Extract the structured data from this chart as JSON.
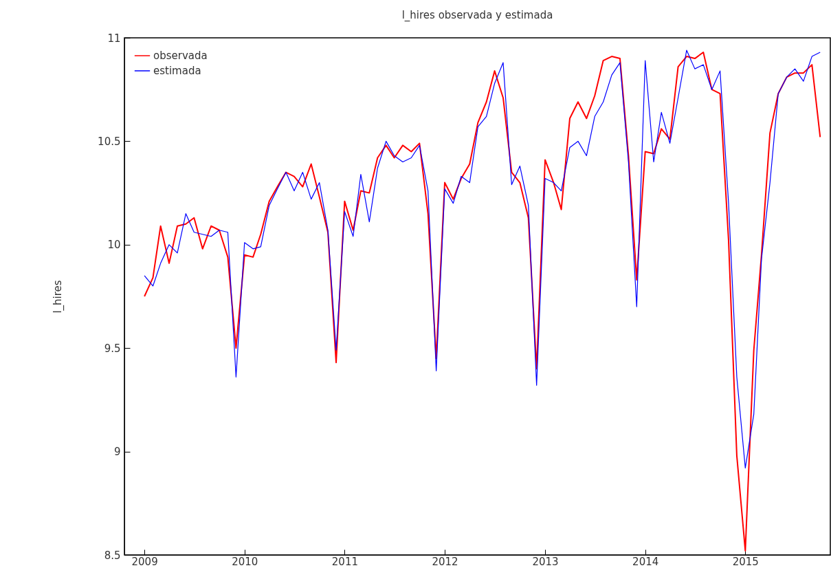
{
  "chart_data": {
    "type": "line",
    "title": "l_hires observada y estimada",
    "ylabel": "l_hires",
    "x": [
      "2009-01",
      "2009-02",
      "2009-03",
      "2009-04",
      "2009-05",
      "2009-06",
      "2009-07",
      "2009-08",
      "2009-09",
      "2009-10",
      "2009-11",
      "2009-12",
      "2010-01",
      "2010-02",
      "2010-03",
      "2010-04",
      "2010-05",
      "2010-06",
      "2010-07",
      "2010-08",
      "2010-09",
      "2010-10",
      "2010-11",
      "2010-12",
      "2011-01",
      "2011-02",
      "2011-03",
      "2011-04",
      "2011-05",
      "2011-06",
      "2011-07",
      "2011-08",
      "2011-09",
      "2011-10",
      "2011-11",
      "2011-12",
      "2012-01",
      "2012-02",
      "2012-03",
      "2012-04",
      "2012-05",
      "2012-06",
      "2012-07",
      "2012-08",
      "2012-09",
      "2012-10",
      "2012-11",
      "2012-12",
      "2013-01",
      "2013-02",
      "2013-03",
      "2013-04",
      "2013-05",
      "2013-06",
      "2013-07",
      "2013-08",
      "2013-09",
      "2013-10",
      "2013-11",
      "2013-12",
      "2014-01",
      "2014-02",
      "2014-03",
      "2014-04",
      "2014-05",
      "2014-06",
      "2014-07",
      "2014-08",
      "2014-09",
      "2014-10",
      "2014-11",
      "2014-12",
      "2015-01",
      "2015-02",
      "2015-03",
      "2015-04",
      "2015-05",
      "2015-06",
      "2015-07",
      "2015-08",
      "2015-09",
      "2015-10"
    ],
    "series": [
      {
        "name": "observada",
        "color": "#ff0000",
        "values": [
          9.75,
          9.84,
          10.09,
          9.91,
          10.09,
          10.1,
          10.13,
          9.98,
          10.09,
          10.07,
          9.94,
          9.5,
          9.95,
          9.94,
          10.05,
          10.21,
          10.28,
          10.35,
          10.33,
          10.28,
          10.39,
          10.23,
          10.06,
          9.43,
          10.21,
          10.07,
          10.26,
          10.25,
          10.42,
          10.48,
          10.42,
          10.48,
          10.45,
          10.49,
          10.15,
          9.45,
          10.3,
          10.22,
          10.32,
          10.39,
          10.59,
          10.69,
          10.84,
          10.71,
          10.35,
          10.3,
          10.13,
          9.4,
          10.41,
          10.3,
          10.17,
          10.61,
          10.69,
          10.61,
          10.72,
          10.89,
          10.91,
          10.9,
          10.43,
          9.83,
          10.45,
          10.44,
          10.56,
          10.51,
          10.86,
          10.91,
          10.9,
          10.93,
          10.75,
          10.73,
          10.02,
          8.98,
          8.52,
          9.49,
          9.95,
          10.54,
          10.73,
          10.81,
          10.83,
          10.83,
          10.87,
          10.52
        ]
      },
      {
        "name": "estimada",
        "color": "#0000ff",
        "values": [
          9.85,
          9.8,
          9.91,
          10.0,
          9.96,
          10.15,
          10.06,
          10.05,
          10.04,
          10.07,
          10.06,
          9.36,
          10.01,
          9.98,
          9.99,
          10.19,
          10.27,
          10.35,
          10.26,
          10.35,
          10.22,
          10.3,
          10.07,
          9.49,
          10.16,
          10.04,
          10.34,
          10.11,
          10.37,
          10.5,
          10.43,
          10.4,
          10.42,
          10.48,
          10.26,
          9.39,
          10.27,
          10.2,
          10.33,
          10.3,
          10.57,
          10.62,
          10.78,
          10.88,
          10.29,
          10.38,
          10.19,
          9.32,
          10.32,
          10.3,
          10.26,
          10.47,
          10.5,
          10.43,
          10.62,
          10.69,
          10.82,
          10.88,
          10.4,
          9.7,
          10.89,
          10.4,
          10.64,
          10.49,
          10.71,
          10.94,
          10.85,
          10.87,
          10.75,
          10.84,
          10.2,
          9.36,
          8.92,
          9.18,
          9.93,
          10.3,
          10.73,
          10.81,
          10.85,
          10.79,
          10.91,
          10.93
        ]
      }
    ],
    "xlim": [
      "2008-10-20",
      "2015-11-07"
    ],
    "xticks": [
      "2009",
      "2010",
      "2011",
      "2012",
      "2013",
      "2014",
      "2015"
    ],
    "ylim": [
      8.5,
      11
    ],
    "yticks": [
      8.5,
      9,
      9.5,
      10,
      10.5,
      11
    ],
    "grid": false,
    "legend": "top left",
    "marker": "none",
    "line_style": "solid"
  }
}
